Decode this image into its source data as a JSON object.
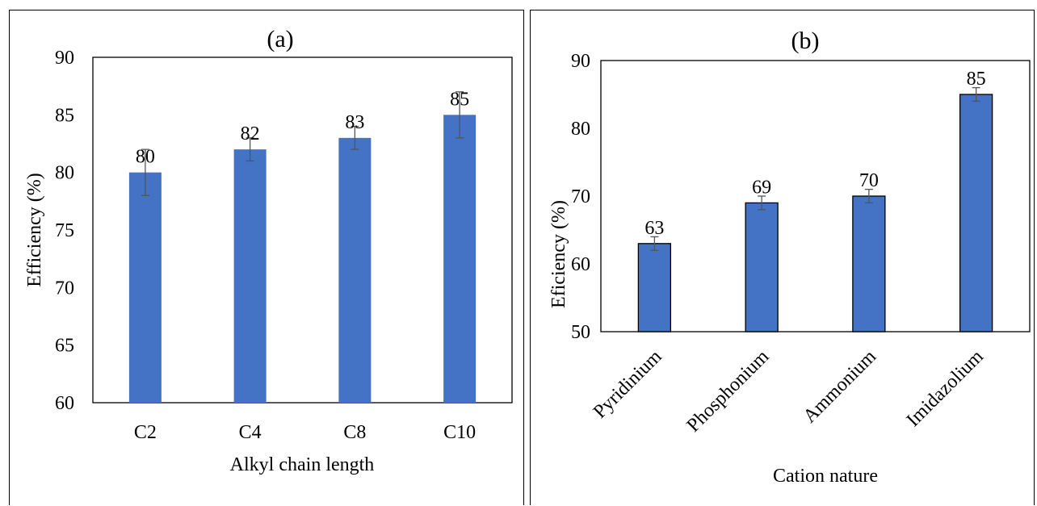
{
  "chart_data": [
    {
      "type": "bar",
      "title": "(a)",
      "xlabel": "Alkyl chain length",
      "ylabel": "Efficiency (%)",
      "categories": [
        "C2",
        "C4",
        "C8",
        "C10"
      ],
      "values": [
        80,
        82,
        83,
        85
      ],
      "error": [
        2,
        1,
        1,
        2
      ],
      "data_labels": [
        "80",
        "82",
        "83",
        "85"
      ],
      "ylim": [
        60,
        90
      ],
      "yticks": [
        60,
        65,
        70,
        75,
        80,
        85,
        90
      ],
      "grid": false,
      "bar_color": "#4472C4",
      "bar_border": false
    },
    {
      "type": "bar",
      "title": "(b)",
      "xlabel": "Cation nature",
      "ylabel": "Eficiency (%)",
      "categories": [
        "Pyridinium",
        "Phosphonium",
        "Ammonium",
        "Imidazolium"
      ],
      "values": [
        63,
        69,
        70,
        85
      ],
      "error": [
        1,
        1,
        1,
        1
      ],
      "data_labels": [
        "63",
        "69",
        "70",
        "85"
      ],
      "ylim": [
        50,
        90
      ],
      "yticks": [
        50,
        60,
        70,
        80,
        90
      ],
      "grid": false,
      "bar_color": "#4472C4",
      "bar_border": true
    }
  ]
}
